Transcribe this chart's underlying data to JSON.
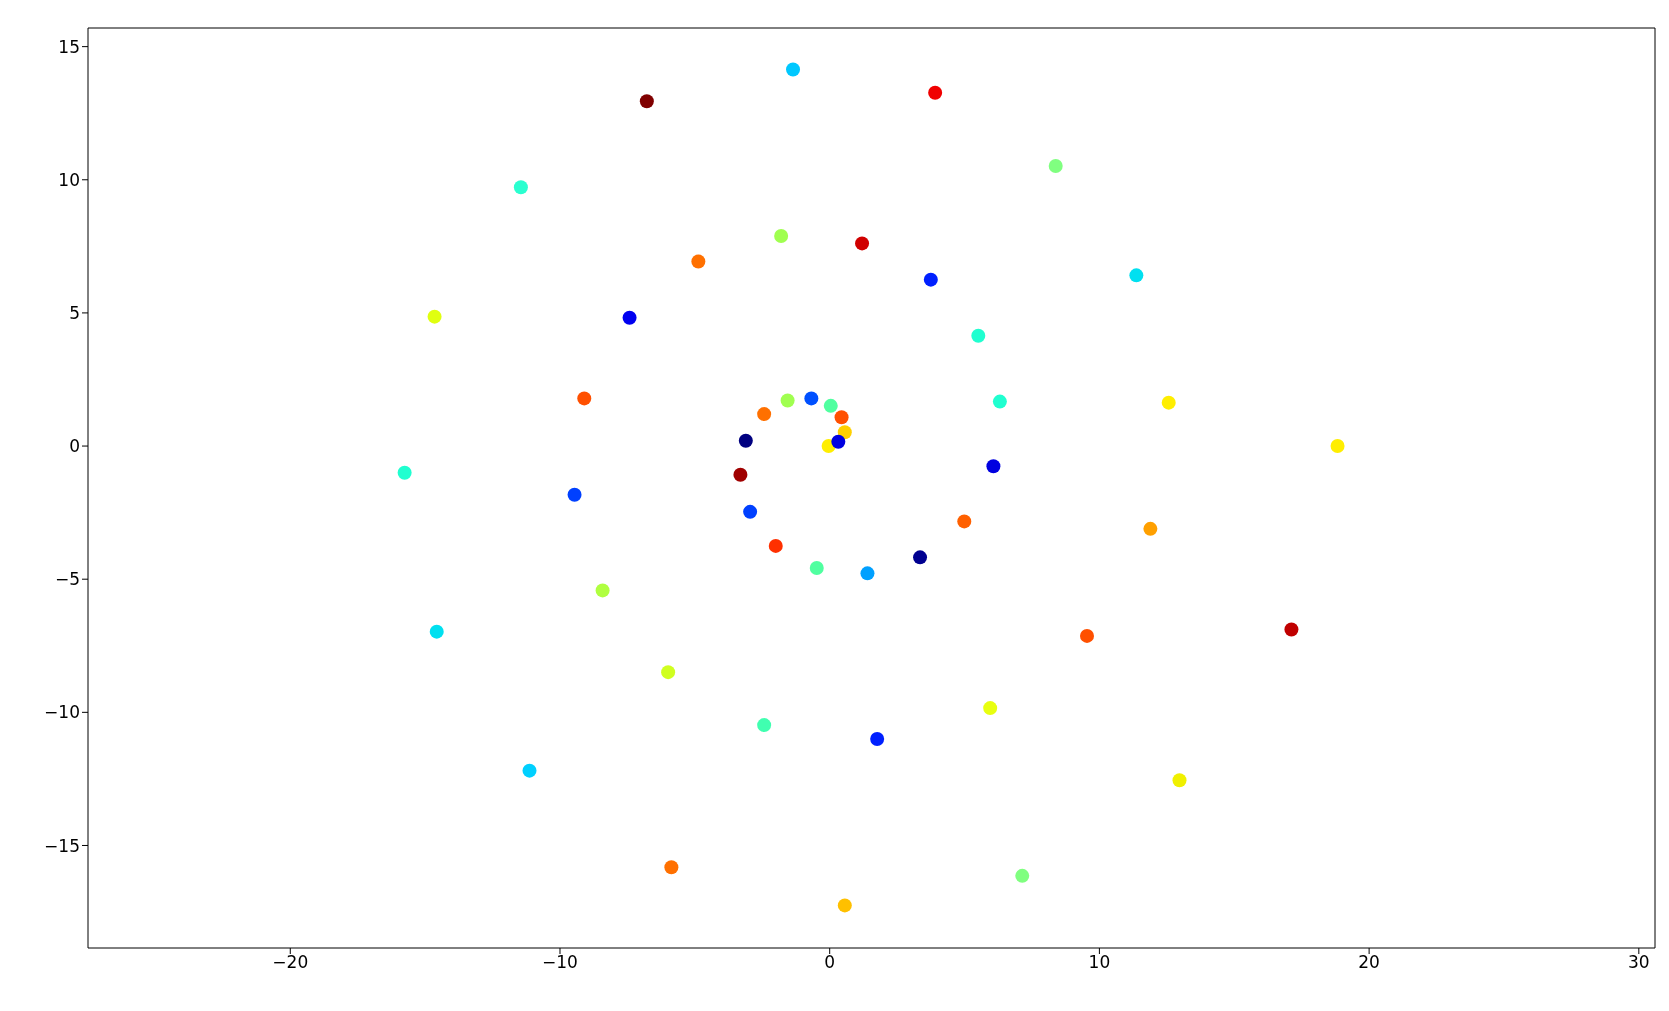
{
  "chart_data": {
    "type": "scatter",
    "marker": "circle",
    "grid": false,
    "legend": false,
    "xlim": [
      -27.5,
      30.6
    ],
    "ylim": [
      -18.85,
      15.7
    ],
    "xticks": [
      -20,
      -10,
      0,
      10,
      20,
      30
    ],
    "yticks": [
      -15,
      -10,
      -5,
      0,
      5,
      10,
      15
    ],
    "x": [
      -1.36,
      3.91,
      -6.78,
      8.38,
      -11.45,
      -1.8,
      1.2,
      -4.87,
      3.75,
      11.37,
      -14.65,
      -7.42,
      5.51,
      -9.1,
      -0.68,
      -1.56,
      0.04,
      -2.43,
      6.31,
      12.57,
      0.44,
      0.56,
      -0.04,
      -3.11,
      0.32,
      18.83,
      -15.76,
      -3.31,
      6.07,
      -9.46,
      -2.95,
      4.99,
      11.89,
      -2.0,
      -0.48,
      1.4,
      3.35,
      -8.42,
      -14.57,
      17.12,
      9.54,
      -5.99,
      5.95,
      -2.43,
      1.76,
      -11.13,
      12.97,
      -5.87,
      7.14,
      0.56
    ],
    "values": [
      14.14,
      13.27,
      12.95,
      10.52,
      9.72,
      7.89,
      7.61,
      6.93,
      6.25,
      6.41,
      4.86,
      4.82,
      4.14,
      1.79,
      1.79,
      1.71,
      1.51,
      1.2,
      1.67,
      1.63,
      1.08,
      0.52,
      0,
      0.2,
      0.16,
      0,
      -1.0,
      -1.08,
      -0.76,
      -1.83,
      -2.47,
      -2.83,
      -3.11,
      -3.75,
      -4.58,
      -4.78,
      -4.18,
      -5.42,
      -6.97,
      -6.89,
      -7.13,
      -8.49,
      -9.84,
      -10.48,
      -11.0,
      -12.19,
      -12.55,
      -15.82,
      -16.14,
      -17.25
    ],
    "colors": [
      "#00c8ff",
      "#f00000",
      "#800000",
      "#80ff80",
      "#2affd0",
      "#a0ff50",
      "#d00000",
      "#ff7000",
      "#0020ff",
      "#00e0f0",
      "#e0ff10",
      "#0000f0",
      "#20ffd0",
      "#ff5000",
      "#0050ff",
      "#a0ff50",
      "#50ffa0",
      "#ff7000",
      "#20ffd0",
      "#ffee00",
      "#ff5000",
      "#ffd000",
      "#ffee00",
      "#000080",
      "#0000e0",
      "#ffee00",
      "#20ffd0",
      "#a00000",
      "#0000e0",
      "#0040ff",
      "#0040ff",
      "#ff6000",
      "#ffa000",
      "#ff3000",
      "#50ffa0",
      "#00a0ff",
      "#000090",
      "#b0ff40",
      "#00e0f0",
      "#c00000",
      "#ff5000",
      "#d0ff20",
      "#e8ff10",
      "#40ffb0",
      "#0020ff",
      "#00d0ff",
      "#f0f000",
      "#ff7000",
      "#80ff80",
      "#ffc000"
    ]
  }
}
